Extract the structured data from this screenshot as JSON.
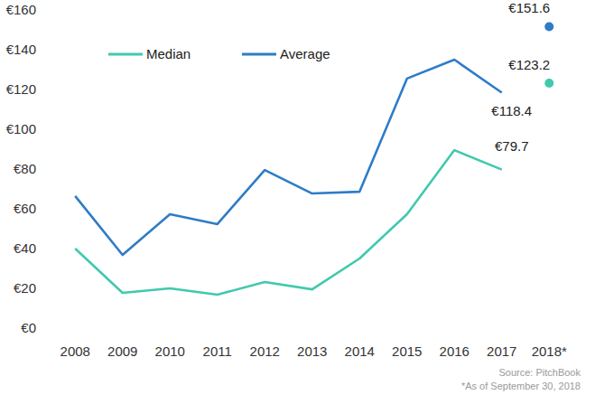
{
  "chart_data": {
    "type": "line",
    "categories": [
      "2008",
      "2009",
      "2010",
      "2011",
      "2012",
      "2013",
      "2014",
      "2015",
      "2016",
      "2017",
      "2018*"
    ],
    "series": [
      {
        "name": "Median",
        "color": "#40c9ad",
        "values": [
          40.0,
          17.7,
          20.0,
          16.8,
          23.2,
          19.5,
          35.0,
          57.3,
          89.5,
          79.7,
          123.2
        ],
        "value_labels": [
          null,
          null,
          null,
          null,
          null,
          null,
          null,
          null,
          null,
          "€79.7",
          "€123.2"
        ]
      },
      {
        "name": "Average",
        "color": "#2f7cc6",
        "values": [
          66.4,
          36.8,
          57.3,
          52.3,
          79.5,
          67.7,
          68.6,
          125.5,
          135.0,
          118.4,
          151.6
        ],
        "value_labels": [
          null,
          null,
          null,
          null,
          null,
          null,
          null,
          null,
          null,
          "€118.4",
          "€151.6"
        ]
      }
    ],
    "ylim": [
      0,
      160
    ],
    "yticks": [
      {
        "value": 0,
        "label": "€0"
      },
      {
        "value": 20,
        "label": "€20"
      },
      {
        "value": 40,
        "label": "€40"
      },
      {
        "value": 60,
        "label": "€60"
      },
      {
        "value": 80,
        "label": "€80"
      },
      {
        "value": 100,
        "label": "€100"
      },
      {
        "value": 120,
        "label": "€120"
      },
      {
        "value": 140,
        "label": "€140"
      },
      {
        "value": 160,
        "label": "€160"
      }
    ],
    "grid": false,
    "legend": "top-left",
    "source": "Source: PitchBook",
    "note": "*As of September 30, 2018"
  }
}
